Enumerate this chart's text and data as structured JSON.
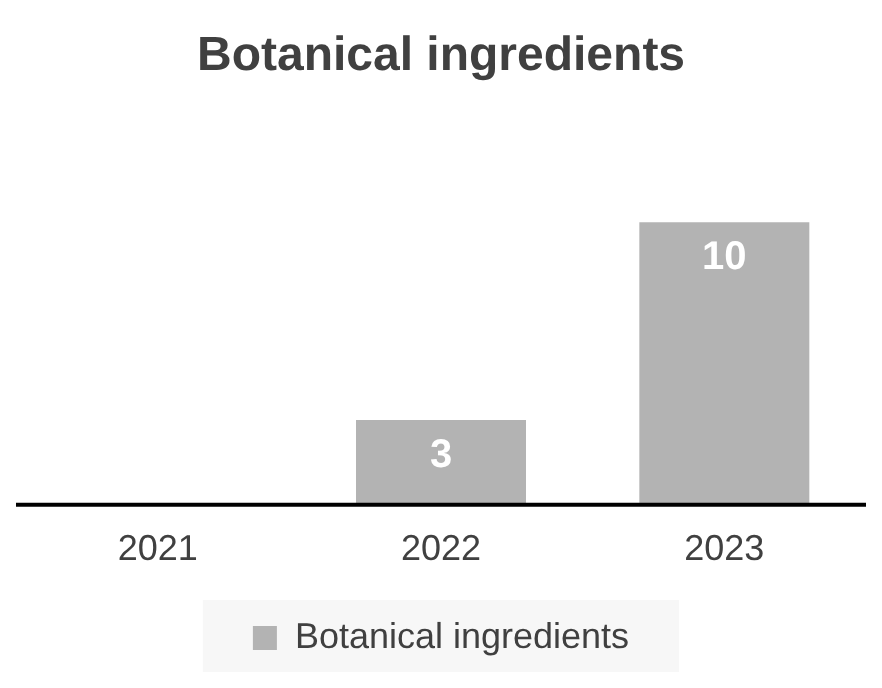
{
  "chart_data": {
    "type": "bar",
    "title": "Botanical ingredients",
    "categories": [
      "2021",
      "2022",
      "2023"
    ],
    "series": [
      {
        "name": "Botanical ingredients",
        "color": "#b3b3b3",
        "values": [
          0,
          3,
          10
        ],
        "value_labels": [
          null,
          "3",
          "10"
        ]
      }
    ],
    "legend": "bottom",
    "grid": false
  }
}
